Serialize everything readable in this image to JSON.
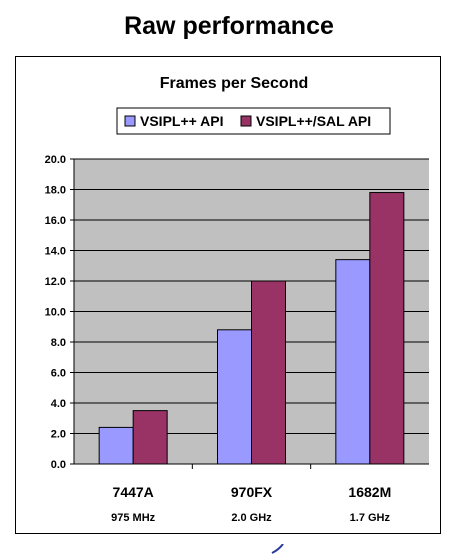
{
  "page": {
    "title": "Raw performance"
  },
  "chart_data": {
    "type": "bar",
    "title": "Frames per Second",
    "categories": [
      "7447A",
      "970FX",
      "1682M"
    ],
    "category_sublabels": [
      "975 MHz",
      "2.0 GHz",
      "1.7 GHz"
    ],
    "series": [
      {
        "name": "VSIPL++ API",
        "values": [
          2.4,
          8.8,
          13.4
        ],
        "color": "#9999ff"
      },
      {
        "name": "VSIPL++/SAL API",
        "values": [
          3.5,
          12.0,
          17.8
        ],
        "color": "#993366"
      }
    ],
    "ylim": [
      0,
      20
    ],
    "yticks": [
      "0.0",
      "2.0",
      "4.0",
      "6.0",
      "8.0",
      "10.0",
      "12.0",
      "14.0",
      "16.0",
      "18.0",
      "20.0"
    ],
    "grid": true,
    "legend": "top",
    "plot_background": "#c0c0c0"
  }
}
